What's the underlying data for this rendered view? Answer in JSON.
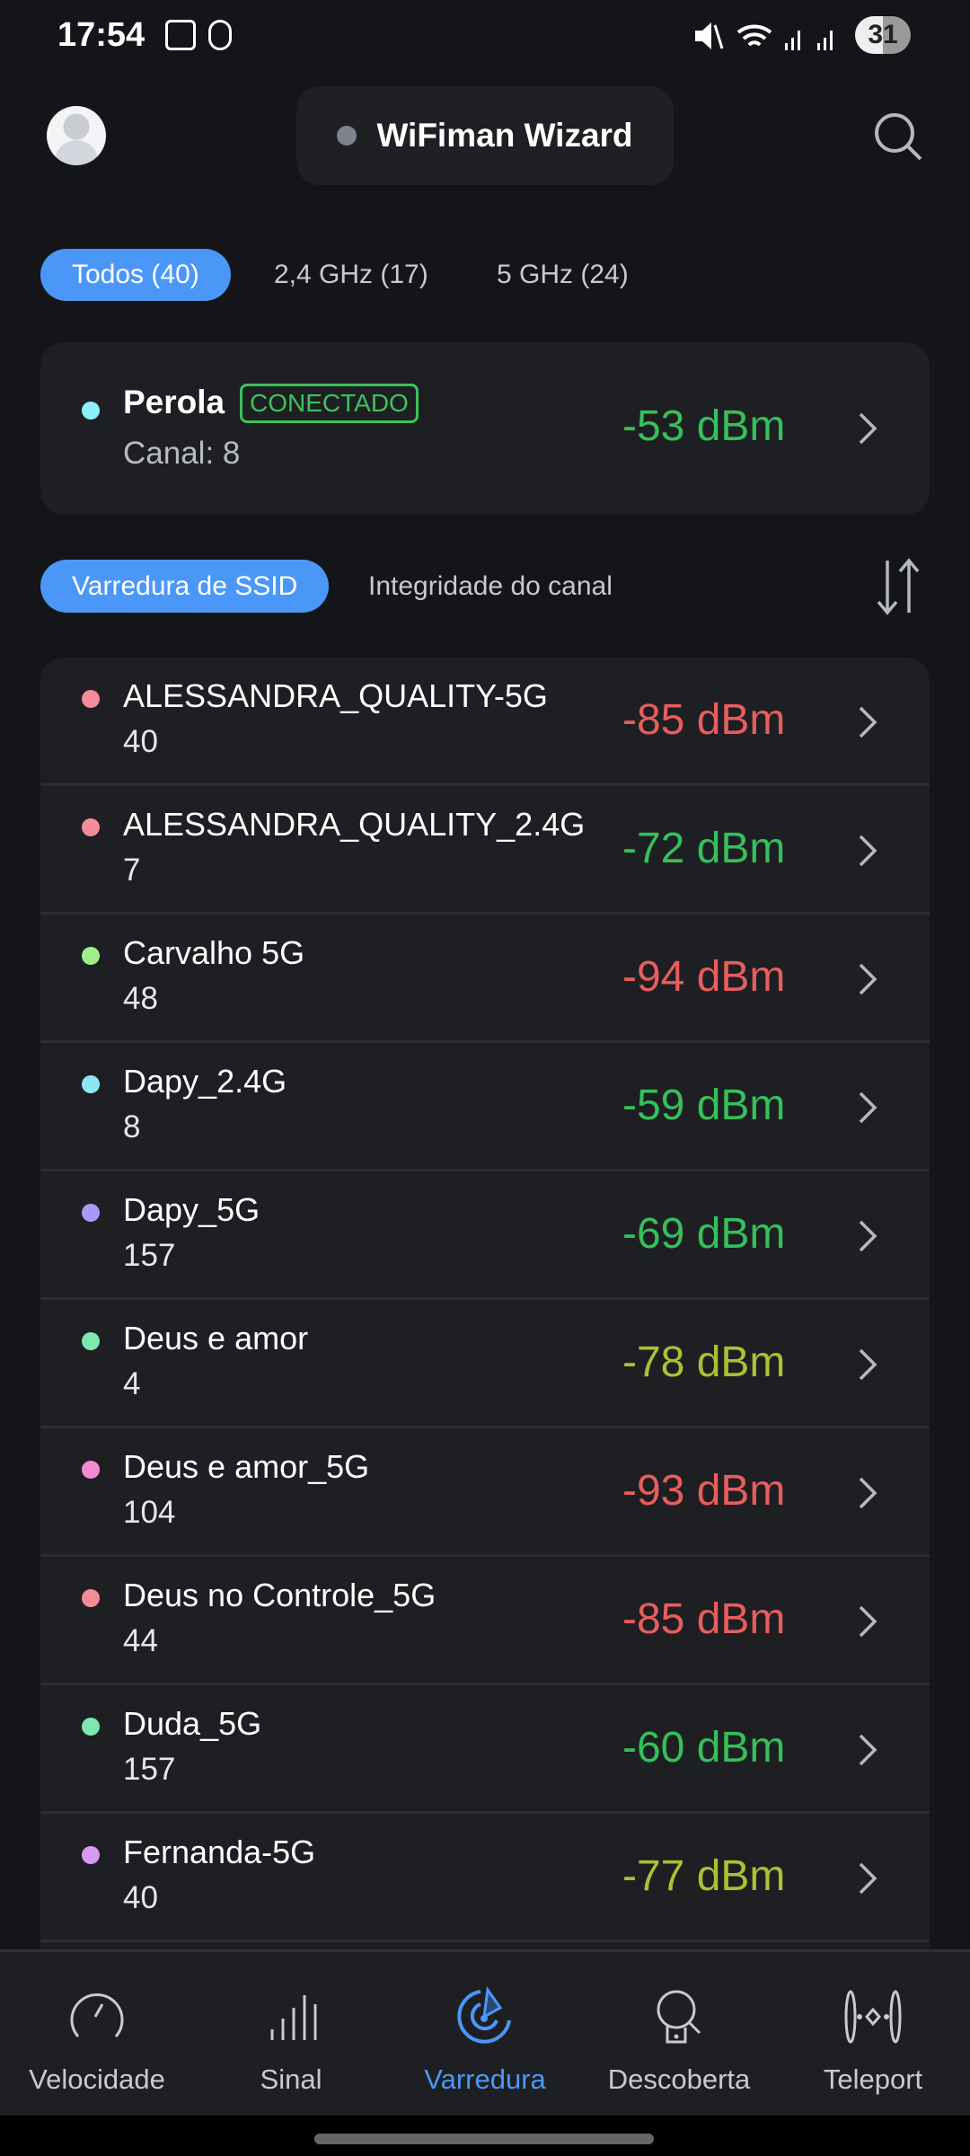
{
  "status_bar": {
    "time": "17:54",
    "battery": "31"
  },
  "header": {
    "title": "WiFiman Wizard"
  },
  "filter_tabs": [
    {
      "label": "Todos (40)",
      "active": true
    },
    {
      "label": "2,4 GHz (17)",
      "active": false
    },
    {
      "label": "5 GHz (24)",
      "active": false
    }
  ],
  "connected": {
    "name": "Perola",
    "badge": "CONECTADO",
    "channel": "Canal: 8",
    "signal": "-53 dBm",
    "dot_color": "#8ef0f8",
    "signal_color": "#35c05a"
  },
  "scan_tabs": [
    {
      "label": "Varredura de SSID",
      "active": true
    },
    {
      "label": "Integridade do canal",
      "active": false
    }
  ],
  "networks": [
    {
      "name": "ALESSANDRA_QUALITY-5G",
      "channel": "40",
      "signal": "-85 dBm",
      "dot": "#f48b98",
      "color": "#e85d5d"
    },
    {
      "name": "ALESSANDRA_QUALITY_2.4G",
      "channel": "7",
      "signal": "-72 dBm",
      "dot": "#f48b98",
      "color": "#35c05a"
    },
    {
      "name": "Carvalho 5G",
      "channel": "48",
      "signal": "-94 dBm",
      "dot": "#9ef08a",
      "color": "#e85d5d"
    },
    {
      "name": "Dapy_2.4G",
      "channel": "8",
      "signal": "-59 dBm",
      "dot": "#8ee6f5",
      "color": "#35c05a"
    },
    {
      "name": "Dapy_5G",
      "channel": "157",
      "signal": "-69 dBm",
      "dot": "#a99af5",
      "color": "#35c05a"
    },
    {
      "name": "Deus e amor",
      "channel": "4",
      "signal": "-78 dBm",
      "dot": "#7de8b0",
      "color": "#a8c232"
    },
    {
      "name": "Deus e amor_5G",
      "channel": "104",
      "signal": "-93 dBm",
      "dot": "#f28ad2",
      "color": "#e85d5d"
    },
    {
      "name": "Deus no Controle_5G",
      "channel": "44",
      "signal": "-85 dBm",
      "dot": "#f48b98",
      "color": "#e85d5d"
    },
    {
      "name": "Duda_5G",
      "channel": "157",
      "signal": "-60 dBm",
      "dot": "#7de8b0",
      "color": "#35c05a"
    },
    {
      "name": "Fernanda-5G",
      "channel": "40",
      "signal": "-77 dBm",
      "dot": "#d99af5",
      "color": "#a8c232"
    }
  ],
  "nav": [
    {
      "label": "Velocidade",
      "icon": "speedometer-icon"
    },
    {
      "label": "Sinal",
      "icon": "signal-bars-icon"
    },
    {
      "label": "Varredura",
      "icon": "radar-icon",
      "active": true
    },
    {
      "label": "Descoberta",
      "icon": "device-discovery-icon"
    },
    {
      "label": "Teleport",
      "icon": "teleport-icon"
    }
  ],
  "colors": {
    "accent": "#4b97f8",
    "good": "#35c05a",
    "fair": "#a8c232",
    "poor": "#e85d5d"
  }
}
